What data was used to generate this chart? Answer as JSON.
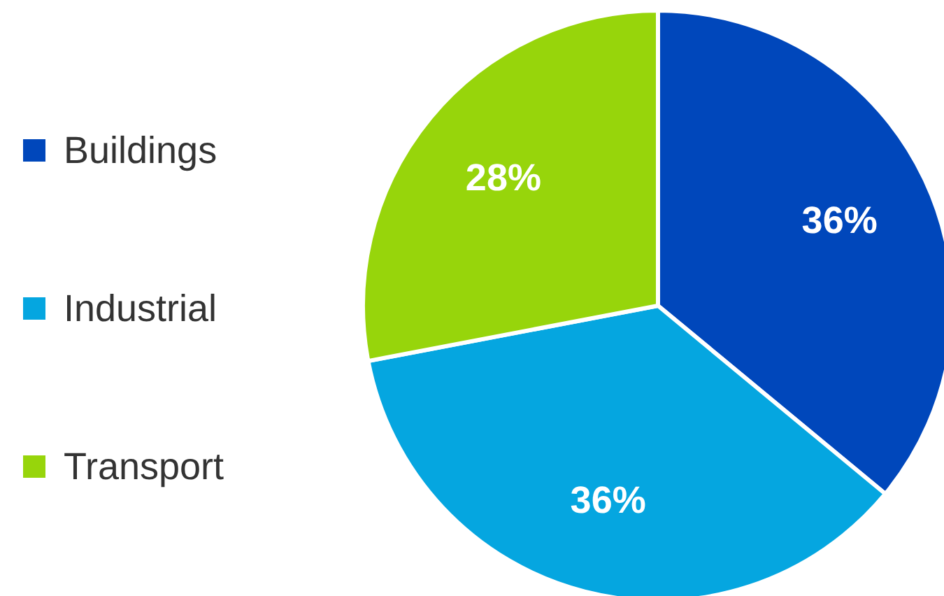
{
  "chart_data": {
    "type": "pie",
    "categories": [
      "Buildings",
      "Industrial",
      "Transport"
    ],
    "values": [
      36,
      36,
      28
    ],
    "colors": [
      "#0047bb",
      "#05a6e0",
      "#97d50b"
    ],
    "value_labels": [
      "36%",
      "36%",
      "28%"
    ],
    "legend": "left"
  }
}
